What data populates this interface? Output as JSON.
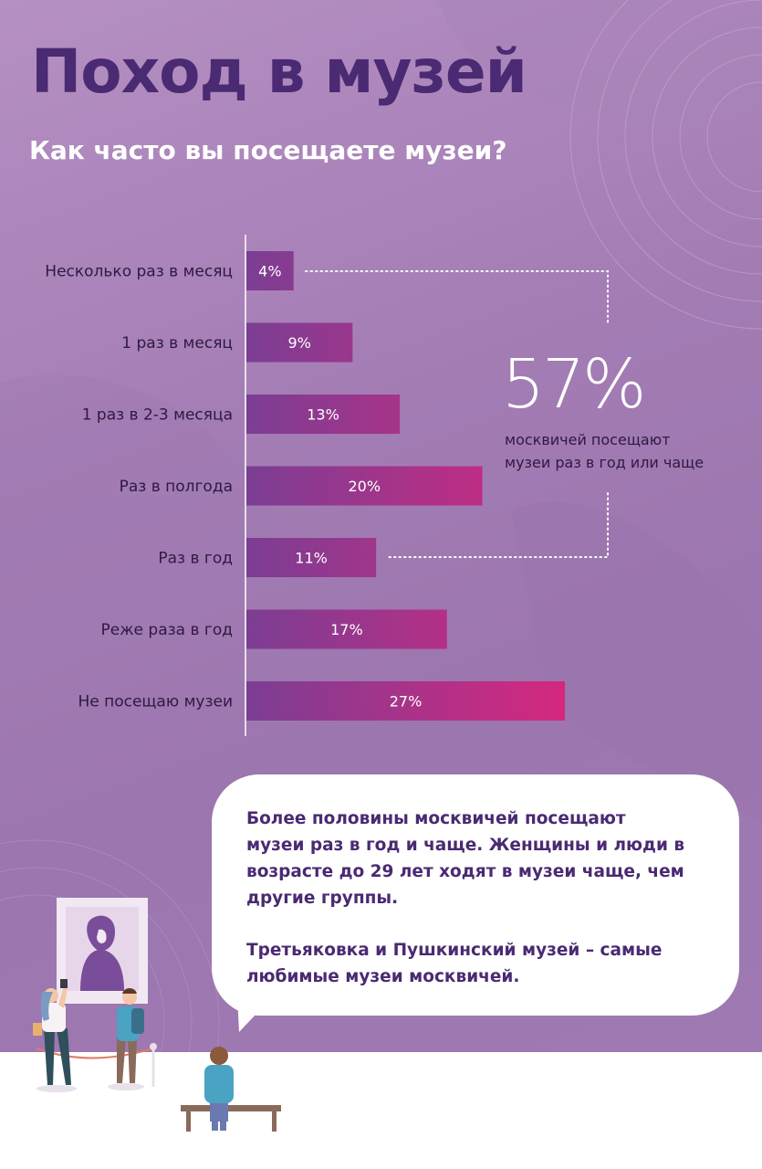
{
  "page": {
    "title": "Поход в музей",
    "subtitle": "Как часто вы посещаете музеи?"
  },
  "chart_data": {
    "type": "bar",
    "orientation": "horizontal",
    "categories": [
      "Несколько раз в месяц",
      "1 раз в месяц",
      "1 раз в 2-3 месяца",
      "Раз в полгода",
      "Раз в год",
      "Реже раза в год",
      "Не посещаю музеи"
    ],
    "values": [
      4,
      9,
      13,
      20,
      11,
      17,
      27
    ],
    "value_labels": [
      "4%",
      "9%",
      "13%",
      "20%",
      "11%",
      "17%",
      "27%"
    ],
    "unit": "%",
    "xlim": [
      0,
      30
    ],
    "grid": false,
    "colors": {
      "bar_start": "#7b3e93",
      "bar_end": "#d5287f"
    }
  },
  "callout": {
    "value": "57%",
    "description": [
      "москвичей посещают",
      "музеи раз в год или чаще"
    ]
  },
  "bubble": {
    "paragraphs": [
      [
        "Более половины москвичей посещают",
        "музеи раз в год и чаще. Женщины и люди в",
        "возрасте до 29 лет ходят в музеи чаще, чем",
        "другие группы."
      ],
      [
        "Третьяковка и Пушкинский музей – самые",
        "любимые музеи москвичей."
      ]
    ]
  },
  "colors": {
    "title": "#4a2a72",
    "text_dark": "#2e1a40",
    "background": "#a47db5"
  }
}
